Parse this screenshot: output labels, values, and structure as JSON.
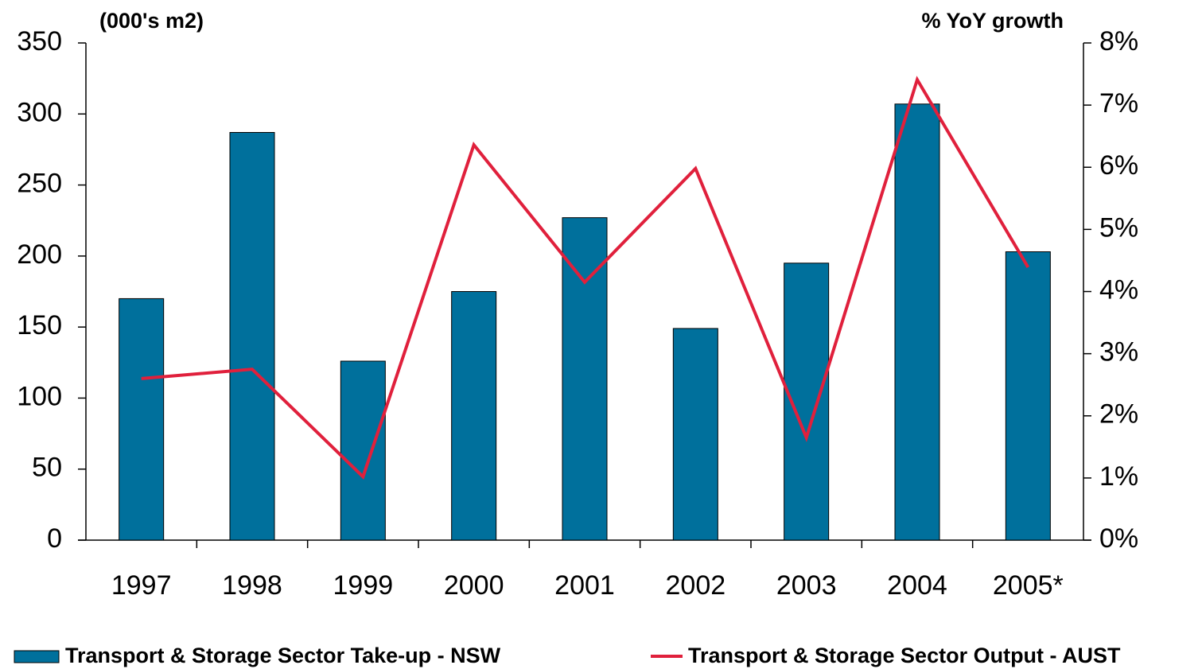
{
  "chart_data": {
    "type": "bar",
    "y_label": "(000's m2)",
    "y2_label": "% YoY growth",
    "categories": [
      "1997",
      "1998",
      "1999",
      "2000",
      "2001",
      "2002",
      "2003",
      "2004",
      "2005*"
    ],
    "series": [
      {
        "name": "Transport & Storage Sector Take-up - NSW",
        "type": "bar",
        "color": "#00709c",
        "values": [
          170,
          287,
          126,
          175,
          227,
          149,
          195,
          307,
          203
        ]
      },
      {
        "name": "Transport & Storage Sector Output - AUST",
        "type": "line",
        "axis": "y2",
        "color": "#e0203c",
        "values": [
          2.6,
          2.75,
          1.02,
          6.36,
          4.15,
          5.98,
          1.65,
          7.41,
          4.39
        ]
      }
    ],
    "ylim": [
      0,
      350
    ],
    "yticks": [
      0,
      50,
      100,
      150,
      200,
      250,
      300,
      350
    ],
    "y2lim": [
      0,
      8
    ],
    "y2ticks": [
      {
        "value": 0,
        "label": "0%"
      },
      {
        "value": 1,
        "label": "1%"
      },
      {
        "value": 2,
        "label": "2%"
      },
      {
        "value": 3,
        "label": "3%"
      },
      {
        "value": 4,
        "label": "4%"
      },
      {
        "value": 5,
        "label": "5%"
      },
      {
        "value": 6,
        "label": "6%"
      },
      {
        "value": 7,
        "label": "7%"
      },
      {
        "value": 8,
        "label": "8%"
      }
    ],
    "grid": false,
    "legend": "bottom"
  }
}
